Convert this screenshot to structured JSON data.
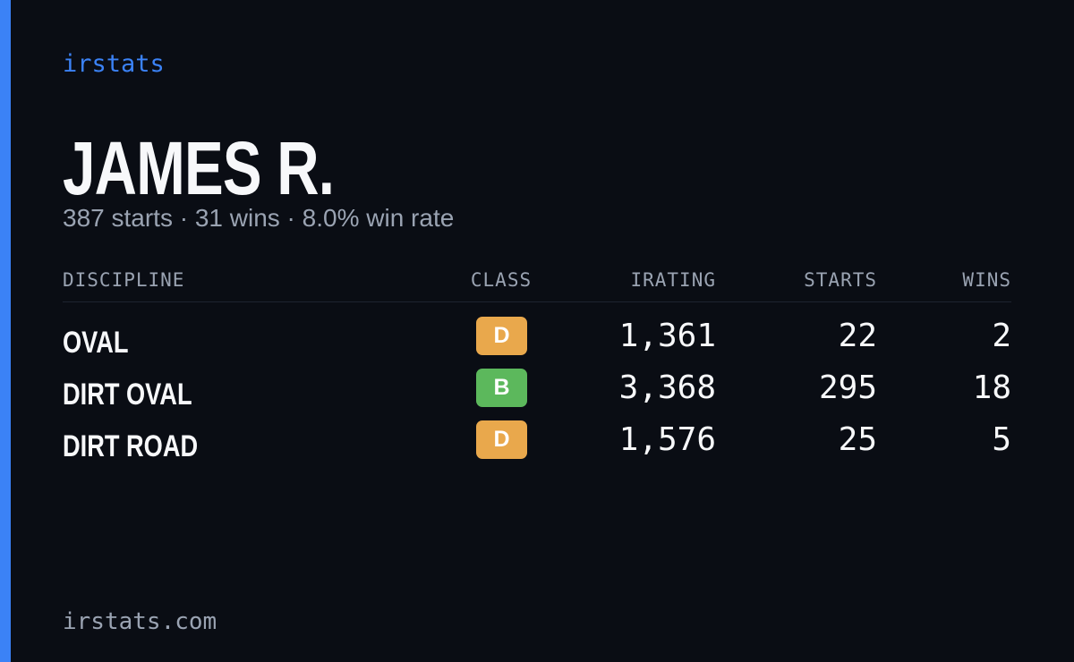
{
  "brand": "irstats",
  "name": "JAMES R.",
  "summary": "387 starts · 31 wins · 8.0% win rate",
  "table": {
    "headers": [
      "DISCIPLINE",
      "CLASS",
      "IRATING",
      "STARTS",
      "WINS"
    ],
    "rows": [
      {
        "discipline": "OVAL",
        "class": "D",
        "color": "#e9a84c",
        "irating": "1,361",
        "starts": "22",
        "wins": "2"
      },
      {
        "discipline": "DIRT OVAL",
        "class": "B",
        "color": "#5cb85c",
        "irating": "3,368",
        "starts": "295",
        "wins": "18"
      },
      {
        "discipline": "DIRT ROAD",
        "class": "D",
        "color": "#e9a84c",
        "irating": "1,576",
        "starts": "25",
        "wins": "5"
      }
    ]
  },
  "footer": "irstats.com"
}
